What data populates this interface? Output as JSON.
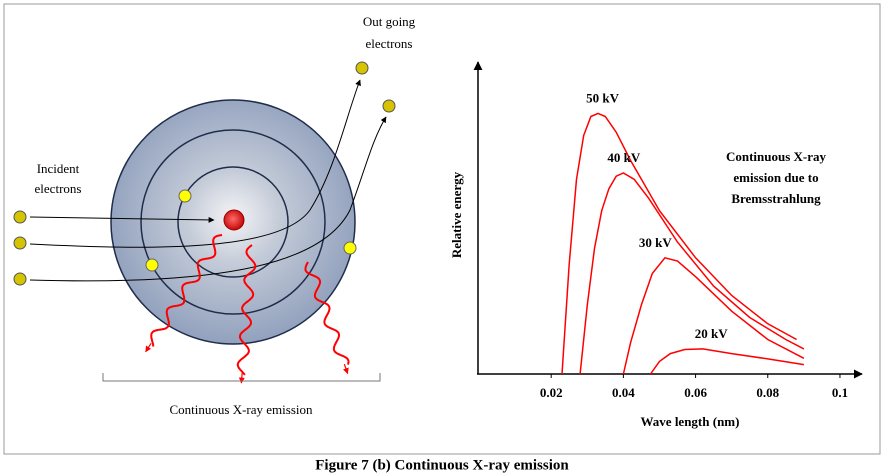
{
  "diagram": {
    "incident_label": [
      "Incident",
      "electrons"
    ],
    "outgoing_label": [
      "Out going",
      "electrons"
    ],
    "emission_label": "Continuous X-ray emission"
  },
  "chart_data": {
    "type": "line",
    "xlabel": "Wave length (nm)",
    "ylabel": "Relative energy",
    "annotation": [
      "Continuous X-ray",
      "emission due to",
      "Bremsstrahlung"
    ],
    "xlim": [
      0,
      0.105
    ],
    "ylim": [
      0,
      100
    ],
    "xticks": [
      0.02,
      0.04,
      0.06,
      0.08,
      0.1
    ],
    "color": "#ff0000",
    "series": [
      {
        "name": "50 kV",
        "x": [
          0.023,
          0.025,
          0.027,
          0.029,
          0.031,
          0.033,
          0.035,
          0.038,
          0.042,
          0.05,
          0.06,
          0.07,
          0.08,
          0.088
        ],
        "values": [
          0,
          35,
          62,
          76,
          82,
          83,
          82,
          77,
          68,
          52,
          37,
          25,
          16,
          11
        ]
      },
      {
        "name": "40 kV",
        "x": [
          0.028,
          0.03,
          0.032,
          0.034,
          0.036,
          0.038,
          0.04,
          0.043,
          0.047,
          0.055,
          0.065,
          0.075,
          0.085,
          0.09
        ],
        "values": [
          0,
          22,
          40,
          52,
          59,
          63,
          64,
          62,
          56,
          42,
          28,
          18,
          11,
          8
        ]
      },
      {
        "name": "30 kV",
        "x": [
          0.04,
          0.042,
          0.045,
          0.048,
          0.0515,
          0.055,
          0.06,
          0.07,
          0.08,
          0.09
        ],
        "values": [
          0,
          10,
          22,
          32,
          37,
          36,
          31,
          20,
          11,
          5
        ]
      },
      {
        "name": "20 kV",
        "x": [
          0.0475,
          0.05,
          0.053,
          0.057,
          0.062,
          0.07,
          0.08,
          0.09
        ],
        "values": [
          0,
          4,
          6.5,
          7.8,
          8,
          6.5,
          4.8,
          3
        ]
      }
    ]
  },
  "caption": "Figure 7 (b) Continuous X-ray emission"
}
